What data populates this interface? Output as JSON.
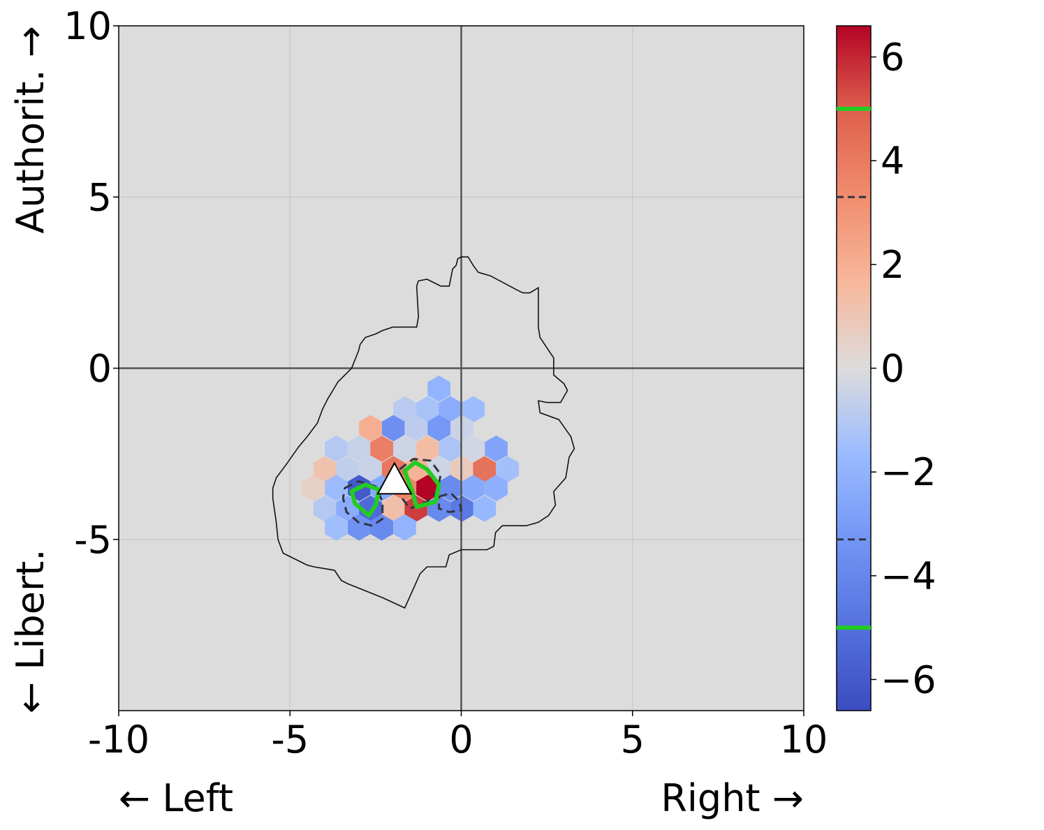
{
  "chart_data": {
    "type": "heatmap",
    "title": "",
    "xlabel_left": "← Left",
    "xlabel_right": "Right →",
    "ylabel_top": "Authorit. →",
    "ylabel_bottom": "← Libert.",
    "xlim": [
      -10,
      10
    ],
    "ylim": [
      -10,
      10
    ],
    "x_ticks": [
      -10,
      -5,
      0,
      5,
      10
    ],
    "x_tick_labels": [
      "-10",
      "-5",
      "0",
      "5",
      "10"
    ],
    "y_ticks": [
      -5,
      0,
      5,
      10
    ],
    "y_tick_labels": [
      "-5",
      "0",
      "5",
      "10"
    ],
    "grid": true,
    "background_color": "#dcdcdc",
    "colormap": "coolwarm",
    "colorbar": {
      "range": [
        -6.6,
        6.6
      ],
      "ticks": [
        -6,
        -4,
        -2,
        0,
        2,
        4,
        6
      ],
      "tick_labels": [
        "−6",
        "−4",
        "−2",
        "0",
        "2",
        "4",
        "6"
      ],
      "contour_levels_dashed": [
        -3.3,
        3.3
      ],
      "contour_levels_green": [
        -5,
        5
      ],
      "green_color": "#22cc22",
      "dashed_color": "#333344"
    },
    "hex_cells": [
      {
        "x": -0.65,
        "y": -0.6,
        "v": -2.0
      },
      {
        "x": -1.65,
        "y": -1.2,
        "v": -0.9
      },
      {
        "x": -0.98,
        "y": -1.2,
        "v": -1.3
      },
      {
        "x": -0.32,
        "y": -1.2,
        "v": -2.3
      },
      {
        "x": 0.35,
        "y": -1.2,
        "v": -1.6
      },
      {
        "x": -2.65,
        "y": -1.75,
        "v": 2.0
      },
      {
        "x": -1.98,
        "y": -1.75,
        "v": -3.6
      },
      {
        "x": -1.32,
        "y": -1.75,
        "v": -0.8
      },
      {
        "x": -0.65,
        "y": -1.75,
        "v": -3.2
      },
      {
        "x": 0.02,
        "y": -1.75,
        "v": -0.5
      },
      {
        "x": -3.65,
        "y": -2.35,
        "v": -1.0
      },
      {
        "x": -2.98,
        "y": -2.35,
        "v": -0.6
      },
      {
        "x": -2.32,
        "y": -2.35,
        "v": 3.8
      },
      {
        "x": -1.65,
        "y": -2.35,
        "v": -0.4
      },
      {
        "x": -0.98,
        "y": -2.35,
        "v": 1.4
      },
      {
        "x": -0.32,
        "y": -2.35,
        "v": -1.2
      },
      {
        "x": 0.35,
        "y": -2.35,
        "v": -0.3
      },
      {
        "x": 1.02,
        "y": -2.35,
        "v": -2.7
      },
      {
        "x": -3.98,
        "y": -2.95,
        "v": 1.2
      },
      {
        "x": -3.32,
        "y": -2.95,
        "v": -0.7
      },
      {
        "x": -2.65,
        "y": -2.95,
        "v": -0.5
      },
      {
        "x": -1.98,
        "y": -2.95,
        "v": 4.1
      },
      {
        "x": -1.32,
        "y": -2.95,
        "v": 1.8
      },
      {
        "x": -0.65,
        "y": -2.95,
        "v": -0.4
      },
      {
        "x": 0.02,
        "y": -2.95,
        "v": 0.8
      },
      {
        "x": 0.68,
        "y": -2.95,
        "v": 4.3
      },
      {
        "x": 1.35,
        "y": -2.95,
        "v": -1.4
      },
      {
        "x": -4.32,
        "y": -3.5,
        "v": 0.6
      },
      {
        "x": -3.65,
        "y": -3.5,
        "v": -1.6
      },
      {
        "x": -2.98,
        "y": -3.5,
        "v": -6.0
      },
      {
        "x": -2.32,
        "y": -3.5,
        "v": -2.4
      },
      {
        "x": -1.65,
        "y": -3.5,
        "v": 3.6
      },
      {
        "x": -0.98,
        "y": -3.5,
        "v": 6.6
      },
      {
        "x": -0.32,
        "y": -3.5,
        "v": -3.8
      },
      {
        "x": 0.35,
        "y": -3.5,
        "v": -2.4
      },
      {
        "x": 1.02,
        "y": -3.5,
        "v": -2.2
      },
      {
        "x": -3.98,
        "y": -4.1,
        "v": -1.0
      },
      {
        "x": -3.32,
        "y": -4.1,
        "v": -2.3
      },
      {
        "x": -2.65,
        "y": -4.1,
        "v": -5.3
      },
      {
        "x": -1.98,
        "y": -4.1,
        "v": 1.3
      },
      {
        "x": -1.32,
        "y": -4.1,
        "v": 5.6
      },
      {
        "x": -0.65,
        "y": -4.1,
        "v": -3.9
      },
      {
        "x": 0.02,
        "y": -4.1,
        "v": -4.6
      },
      {
        "x": 0.68,
        "y": -4.1,
        "v": -1.8
      },
      {
        "x": -3.65,
        "y": -4.65,
        "v": -1.5
      },
      {
        "x": -2.98,
        "y": -4.65,
        "v": -3.5
      },
      {
        "x": -2.32,
        "y": -4.65,
        "v": -3.9
      },
      {
        "x": -1.65,
        "y": -4.65,
        "v": -2.0
      }
    ],
    "outline": [
      [
        0,
        3.25
      ],
      [
        0.2,
        3.25
      ],
      [
        0.35,
        3.0
      ],
      [
        0.5,
        2.8
      ],
      [
        0.85,
        2.7
      ],
      [
        1.6,
        2.3
      ],
      [
        1.8,
        2.2
      ],
      [
        2.0,
        2.2
      ],
      [
        2.25,
        2.35
      ],
      [
        2.25,
        1.2
      ],
      [
        2.3,
        0.9
      ],
      [
        2.7,
        0.3
      ],
      [
        2.7,
        -0.2
      ],
      [
        3.0,
        -0.45
      ],
      [
        3.1,
        -0.65
      ],
      [
        2.9,
        -1.0
      ],
      [
        2.5,
        -1.0
      ],
      [
        2.25,
        -0.95
      ],
      [
        2.3,
        -1.3
      ],
      [
        2.85,
        -1.5
      ],
      [
        3.2,
        -2.0
      ],
      [
        3.3,
        -2.35
      ],
      [
        3.15,
        -2.6
      ],
      [
        3.05,
        -3.2
      ],
      [
        2.7,
        -3.6
      ],
      [
        2.75,
        -4.0
      ],
      [
        2.55,
        -4.3
      ],
      [
        2.25,
        -4.5
      ],
      [
        1.9,
        -4.6
      ],
      [
        1.6,
        -4.6
      ],
      [
        1.2,
        -4.6
      ],
      [
        1.0,
        -4.8
      ],
      [
        0.95,
        -5.2
      ],
      [
        0.75,
        -5.3
      ],
      [
        0.0,
        -5.3
      ],
      [
        -0.35,
        -5.45
      ],
      [
        -0.45,
        -5.8
      ],
      [
        -1.0,
        -5.8
      ],
      [
        -1.2,
        -6.0
      ],
      [
        -1.65,
        -7.0
      ],
      [
        -2.3,
        -6.7
      ],
      [
        -3.3,
        -6.3
      ],
      [
        -3.5,
        -6.2
      ],
      [
        -3.7,
        -5.9
      ],
      [
        -4.3,
        -5.8
      ],
      [
        -4.5,
        -5.75
      ],
      [
        -5.2,
        -5.4
      ],
      [
        -5.35,
        -5.0
      ],
      [
        -5.4,
        -4.5
      ],
      [
        -5.5,
        -3.8
      ],
      [
        -5.5,
        -3.5
      ],
      [
        -5.4,
        -3.2
      ],
      [
        -5.1,
        -2.8
      ],
      [
        -4.75,
        -2.3
      ],
      [
        -4.5,
        -2.0
      ],
      [
        -4.2,
        -1.6
      ],
      [
        -4.05,
        -1.2
      ],
      [
        -3.9,
        -0.9
      ],
      [
        -3.6,
        -0.4
      ],
      [
        -3.35,
        -0.15
      ],
      [
        -3.2,
        0.0
      ],
      [
        -3.0,
        0.5
      ],
      [
        -2.95,
        0.7
      ],
      [
        -2.8,
        0.9
      ],
      [
        -2.5,
        1.0
      ],
      [
        -2.3,
        1.1
      ],
      [
        -2.0,
        1.2
      ],
      [
        -1.6,
        1.2
      ],
      [
        -1.3,
        1.2
      ],
      [
        -1.25,
        1.5
      ],
      [
        -1.3,
        2.4
      ],
      [
        -1.25,
        2.55
      ],
      [
        -1.0,
        2.6
      ],
      [
        -0.6,
        2.4
      ],
      [
        -0.35,
        2.4
      ],
      [
        -0.25,
        2.9
      ],
      [
        -0.15,
        3.0
      ],
      [
        -0.1,
        3.2
      ],
      [
        0,
        3.25
      ]
    ],
    "dashed_contours": [
      [
        [
          -3.4,
          -3.5
        ],
        [
          -3.0,
          -3.3
        ],
        [
          -2.5,
          -3.45
        ],
        [
          -2.3,
          -3.9
        ],
        [
          -2.3,
          -4.4
        ],
        [
          -2.6,
          -4.6
        ],
        [
          -3.0,
          -4.5
        ],
        [
          -3.35,
          -4.2
        ],
        [
          -3.45,
          -3.8
        ],
        [
          -3.4,
          -3.5
        ]
      ],
      [
        [
          -1.8,
          -2.95
        ],
        [
          -1.4,
          -2.65
        ],
        [
          -0.9,
          -2.7
        ],
        [
          -0.6,
          -3.1
        ],
        [
          -0.7,
          -3.6
        ],
        [
          -1.0,
          -3.9
        ],
        [
          -1.5,
          -4.1
        ],
        [
          -1.8,
          -3.7
        ],
        [
          -1.8,
          -2.95
        ]
      ],
      [
        [
          -0.65,
          -3.75
        ],
        [
          -0.3,
          -3.65
        ],
        [
          -0.05,
          -3.9
        ],
        [
          0.0,
          -4.15
        ],
        [
          -0.35,
          -4.2
        ],
        [
          -0.65,
          -4.1
        ],
        [
          -0.65,
          -3.75
        ]
      ]
    ],
    "green_contours": [
      [
        [
          -3.2,
          -3.6
        ],
        [
          -2.8,
          -3.4
        ],
        [
          -2.4,
          -3.55
        ],
        [
          -2.5,
          -4.0
        ],
        [
          -2.7,
          -4.3
        ],
        [
          -3.1,
          -3.95
        ],
        [
          -3.2,
          -3.6
        ]
      ],
      [
        [
          -1.65,
          -3.0
        ],
        [
          -1.35,
          -2.75
        ],
        [
          -1.0,
          -2.95
        ],
        [
          -0.65,
          -3.4
        ],
        [
          -0.75,
          -3.9
        ],
        [
          -1.3,
          -4.05
        ],
        [
          -1.45,
          -3.55
        ],
        [
          -1.65,
          -3.0
        ]
      ]
    ],
    "marker": {
      "shape": "triangle",
      "x": -1.95,
      "y": -3.3,
      "color": "#ffffff"
    }
  }
}
